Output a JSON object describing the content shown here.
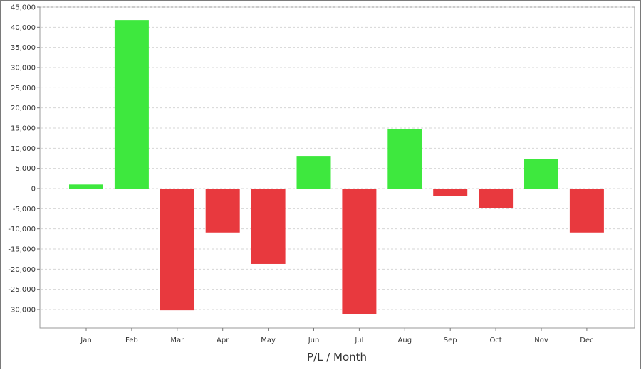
{
  "chart_data": {
    "type": "bar",
    "title": "",
    "xlabel": "P/L / Month",
    "ylabel": "",
    "categories": [
      "Jan",
      "Feb",
      "Mar",
      "Apr",
      "May",
      "Jun",
      "Jul",
      "Aug",
      "Sep",
      "Oct",
      "Nov",
      "Dec"
    ],
    "values": [
      1000,
      41800,
      -30200,
      -10900,
      -18700,
      8100,
      -31200,
      14800,
      -1800,
      -4900,
      7400,
      -10900
    ],
    "ylim": [
      -35000,
      45000
    ],
    "yticks": [
      45000,
      40000,
      35000,
      30000,
      25000,
      20000,
      15000,
      10000,
      5000,
      0,
      -5000,
      -10000,
      -15000,
      -20000,
      -25000,
      -30000
    ],
    "ytick_labels": [
      "45,000",
      "40,000",
      "35,000",
      "30,000",
      "25,000",
      "20,000",
      "15,000",
      "10,000",
      "5,000",
      "0",
      "-5,000",
      "-10,000",
      "-15,000",
      "-20,000",
      "-25,000",
      "-30,000"
    ],
    "grid": true,
    "positive_color": "#3ee83e",
    "negative_color": "#e8393e"
  }
}
